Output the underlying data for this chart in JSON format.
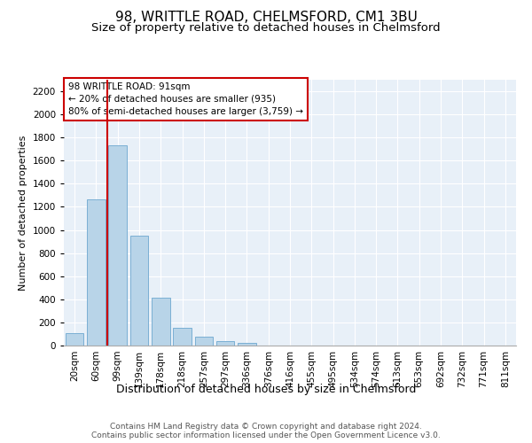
{
  "title1": "98, WRITTLE ROAD, CHELMSFORD, CM1 3BU",
  "title2": "Size of property relative to detached houses in Chelmsford",
  "xlabel": "Distribution of detached houses by size in Chelmsford",
  "ylabel": "Number of detached properties",
  "categories": [
    "20sqm",
    "60sqm",
    "99sqm",
    "139sqm",
    "178sqm",
    "218sqm",
    "257sqm",
    "297sqm",
    "336sqm",
    "376sqm",
    "416sqm",
    "455sqm",
    "495sqm",
    "534sqm",
    "574sqm",
    "613sqm",
    "653sqm",
    "692sqm",
    "732sqm",
    "771sqm",
    "811sqm"
  ],
  "values": [
    108,
    1265,
    1735,
    948,
    415,
    152,
    75,
    42,
    22,
    0,
    0,
    0,
    0,
    0,
    0,
    0,
    0,
    0,
    0,
    0,
    0
  ],
  "bar_color": "#b8d4e8",
  "bar_edge_color": "#7aafd4",
  "vline_color": "#cc0000",
  "annotation_text": "98 WRITTLE ROAD: 91sqm\n← 20% of detached houses are smaller (935)\n80% of semi-detached houses are larger (3,759) →",
  "annotation_box_color": "#ffffff",
  "annotation_box_edge": "#cc0000",
  "ylim": [
    0,
    2300
  ],
  "yticks": [
    0,
    200,
    400,
    600,
    800,
    1000,
    1200,
    1400,
    1600,
    1800,
    2000,
    2200
  ],
  "bg_color": "#e8f0f8",
  "footer1": "Contains HM Land Registry data © Crown copyright and database right 2024.",
  "footer2": "Contains public sector information licensed under the Open Government Licence v3.0.",
  "title1_fontsize": 11,
  "title2_fontsize": 9.5,
  "xlabel_fontsize": 9,
  "ylabel_fontsize": 8,
  "tick_fontsize": 7.5,
  "footer_fontsize": 6.5
}
